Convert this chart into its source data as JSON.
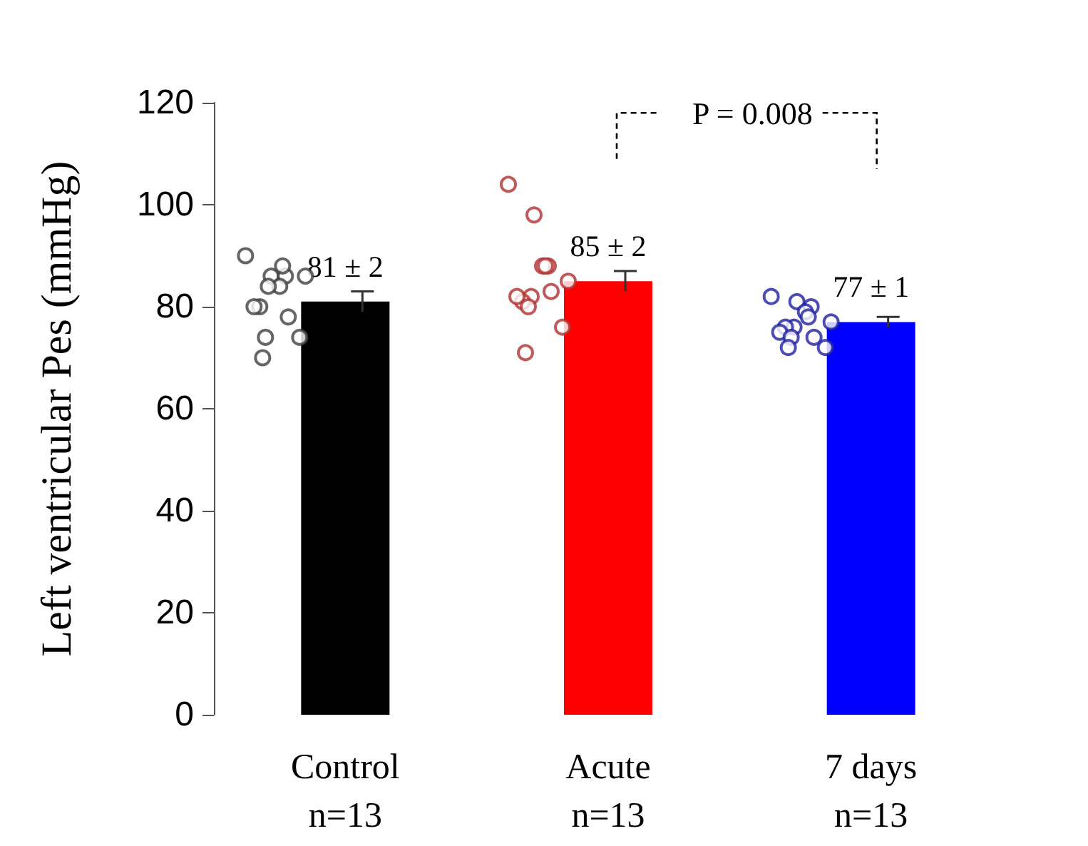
{
  "chart_data": {
    "type": "bar",
    "ylabel": "Left ventricular Pes (mmHg)",
    "categories": [
      "Control\nn=13",
      "Acute\nn=13",
      "7 days\nn=13"
    ],
    "series": [
      {
        "values": [
          81,
          85,
          77
        ],
        "colors": [
          "#000000",
          "#ff0000",
          "#0000ff"
        ],
        "errors": [
          2,
          2,
          1
        ],
        "value_labels": [
          "81 ± 2",
          "85 ± 2",
          "77 ± 1"
        ]
      },
      {
        "type": "scatter",
        "color": "#404040",
        "x": [
          "Control\nn=13",
          "Control\nn=13",
          "Control\nn=13",
          "Control\nn=13",
          "Control\nn=13",
          "Control\nn=13",
          "Control\nn=13",
          "Control\nn=13",
          "Control\nn=13",
          "Control\nn=13",
          "Control\nn=13",
          "Control\nn=13",
          "Control\nn=13"
        ],
        "values": [
          90,
          86,
          86,
          84,
          88,
          86,
          84,
          80,
          80,
          78,
          74,
          74,
          70
        ]
      },
      {
        "type": "scatter",
        "color": "#b03030",
        "x": [
          "Acute\nn=13",
          "Acute\nn=13",
          "Acute\nn=13",
          "Acute\nn=13",
          "Acute\nn=13",
          "Acute\nn=13",
          "Acute\nn=13",
          "Acute\nn=13",
          "Acute\nn=13",
          "Acute\nn=13",
          "Acute\nn=13",
          "Acute\nn=13",
          "Acute\nn=13"
        ],
        "values": [
          104,
          98,
          88,
          88,
          88,
          85,
          82,
          81,
          82,
          83,
          80,
          76,
          71
        ]
      },
      {
        "type": "scatter",
        "color": "#2020a0",
        "x": [
          "7 days\nn=13",
          "7 days\nn=13",
          "7 days\nn=13",
          "7 days\nn=13",
          "7 days\nn=13",
          "7 days\nn=13",
          "7 days\nn=13",
          "7 days\nn=13",
          "7 days\nn=13",
          "7 days\nn=13",
          "7 days\nn=13",
          "7 days\nn=13",
          "7 days\nn=13"
        ],
        "values": [
          82,
          81,
          80,
          79,
          78,
          77,
          76,
          76,
          75,
          74,
          74,
          72,
          72
        ]
      }
    ],
    "annotations": [
      "P = 0.008"
    ],
    "ylim": [
      0,
      120
    ],
    "yticks": [
      0,
      20,
      40,
      60,
      80,
      100,
      120
    ],
    "grid": false,
    "marker": "circle"
  }
}
